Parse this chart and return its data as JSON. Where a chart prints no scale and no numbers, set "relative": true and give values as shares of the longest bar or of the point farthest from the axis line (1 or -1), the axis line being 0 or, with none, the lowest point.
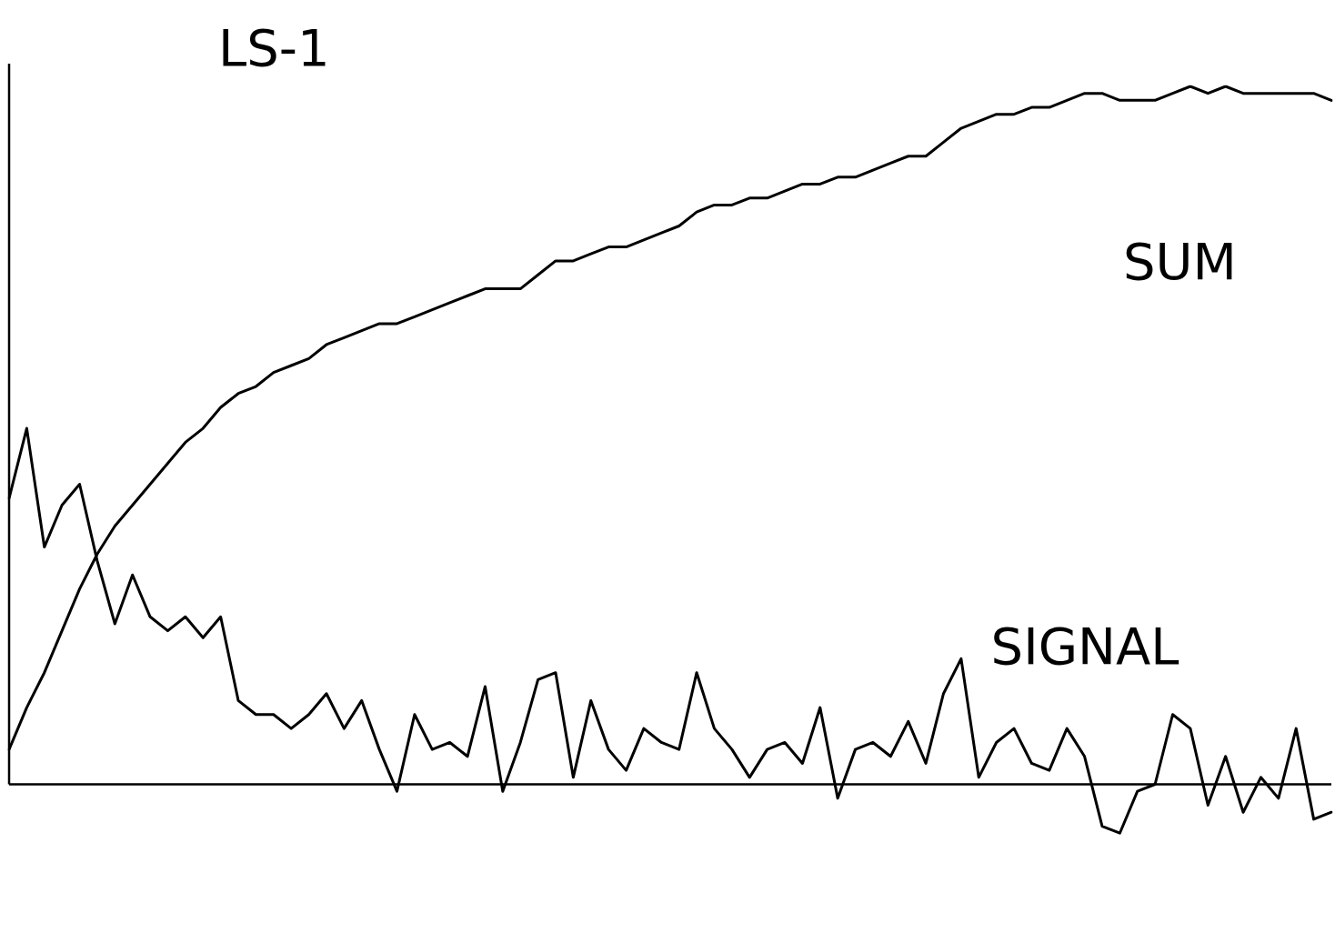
{
  "chart_data": {
    "type": "line",
    "title": "LS-1",
    "relative": true,
    "legend": false,
    "marker": "none",
    "line_style": "solid",
    "categories": [
      null,
      null,
      null,
      null,
      null,
      null,
      null,
      null,
      null,
      null,
      null,
      null,
      null,
      null,
      null,
      null,
      null,
      null,
      null,
      null,
      null,
      null,
      null,
      null,
      null,
      null,
      null,
      null,
      null,
      null,
      null,
      null,
      null,
      null,
      null,
      null,
      null,
      null,
      null,
      null,
      null,
      null,
      null,
      null,
      null,
      null,
      null,
      null,
      null,
      null,
      null,
      null,
      null,
      null,
      null,
      null,
      null,
      null,
      null,
      null,
      null,
      null,
      null,
      null,
      null,
      null,
      null,
      null,
      null,
      null,
      null,
      null,
      null,
      null,
      null,
      null
    ],
    "series": [
      {
        "name": "SUM",
        "color": "#000000",
        "values": [
          0.05,
          0.11,
          0.16,
          0.22,
          0.28,
          0.33,
          0.37,
          0.4,
          0.43,
          0.46,
          0.49,
          0.51,
          0.54,
          0.56,
          0.57,
          0.59,
          0.6,
          0.61,
          0.63,
          0.64,
          0.65,
          0.66,
          0.66,
          0.67,
          0.68,
          0.69,
          0.7,
          0.71,
          0.71,
          0.71,
          0.73,
          0.75,
          0.75,
          0.76,
          0.77,
          0.77,
          0.78,
          0.79,
          0.8,
          0.82,
          0.83,
          0.83,
          0.84,
          0.84,
          0.85,
          0.86,
          0.86,
          0.87,
          0.87,
          0.88,
          0.89,
          0.9,
          0.9,
          0.92,
          0.94,
          0.95,
          0.96,
          0.96,
          0.97,
          0.97,
          0.98,
          0.99,
          0.99,
          0.98,
          0.98,
          0.98,
          0.99,
          1.0,
          0.99,
          1.0,
          0.99,
          0.99,
          0.99,
          0.99,
          0.99,
          0.98
        ]
      },
      {
        "name": "SIGNAL",
        "color": "#000000",
        "values": [
          0.41,
          0.51,
          0.34,
          0.4,
          0.43,
          0.32,
          0.23,
          0.3,
          0.24,
          0.22,
          0.24,
          0.21,
          0.24,
          0.12,
          0.1,
          0.1,
          0.08,
          0.1,
          0.13,
          0.08,
          0.12,
          0.05,
          -0.01,
          0.1,
          0.05,
          0.06,
          0.04,
          0.14,
          -0.01,
          0.06,
          0.15,
          0.16,
          0.01,
          0.12,
          0.05,
          0.02,
          0.08,
          0.06,
          0.05,
          0.16,
          0.08,
          0.05,
          0.01,
          0.05,
          0.06,
          0.03,
          0.11,
          -0.02,
          0.05,
          0.06,
          0.04,
          0.09,
          0.03,
          0.13,
          0.18,
          0.01,
          0.06,
          0.08,
          0.03,
          0.02,
          0.08,
          0.04,
          -0.06,
          -0.07,
          -0.01,
          0.0,
          0.1,
          0.08,
          -0.03,
          0.04,
          -0.04,
          0.01,
          -0.02,
          0.08,
          -0.05,
          -0.04
        ]
      }
    ]
  }
}
